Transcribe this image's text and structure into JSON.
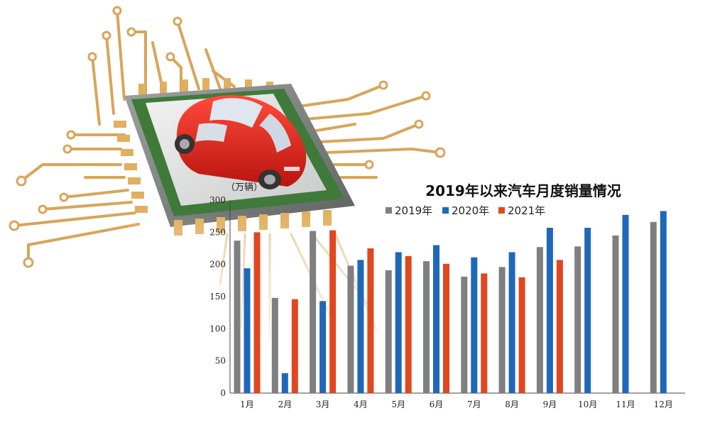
{
  "chart_data": {
    "type": "bar",
    "title": "2019年以来汽车月度销量情况",
    "unit_label": "（万辆）",
    "categories": [
      "1月",
      "2月",
      "3月",
      "4月",
      "5月",
      "6月",
      "7月",
      "8月",
      "9月",
      "10月",
      "11月",
      "12月"
    ],
    "ylim": [
      0,
      300
    ],
    "yticks": [
      0,
      50,
      100,
      150,
      200,
      250,
      300
    ],
    "grid": false,
    "legend_position": "top",
    "series": [
      {
        "name": "2019年",
        "color": "#7f7f7f",
        "values": [
          237,
          148,
          252,
          198,
          191,
          205,
          181,
          196,
          227,
          228,
          245,
          266
        ]
      },
      {
        "name": "2020年",
        "color": "#1f67b8",
        "values": [
          194,
          31,
          143,
          207,
          219,
          230,
          211,
          219,
          257,
          257,
          277,
          283
        ]
      },
      {
        "name": "2021年",
        "color": "#e0471f",
        "values": [
          250,
          146,
          253,
          225,
          213,
          201,
          186,
          180,
          207,
          null,
          null,
          null
        ]
      }
    ]
  }
}
